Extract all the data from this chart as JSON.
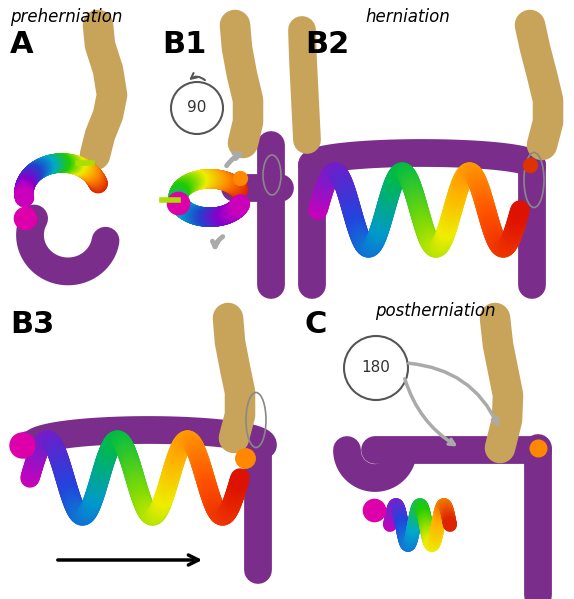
{
  "colors": {
    "purple": "#7b2d8b",
    "magenta": "#dd00aa",
    "red": "#cc2200",
    "orange": "#ff8800",
    "yellow": "#eeee00",
    "green": "#22cc00",
    "cyan": "#00aacc",
    "blue": "#2244cc",
    "tan": "#c8a45a",
    "background": "#ffffff",
    "gray_arrow": "#aaaaaa",
    "dark_gray": "#555555"
  },
  "labels": {
    "preherniation": "preherniation",
    "herniation": "herniation",
    "postherniation": "postherniation",
    "A": "A",
    "B1": "B1",
    "B2": "B2",
    "B3": "B3",
    "C": "C",
    "90": "90",
    "180": "180"
  }
}
